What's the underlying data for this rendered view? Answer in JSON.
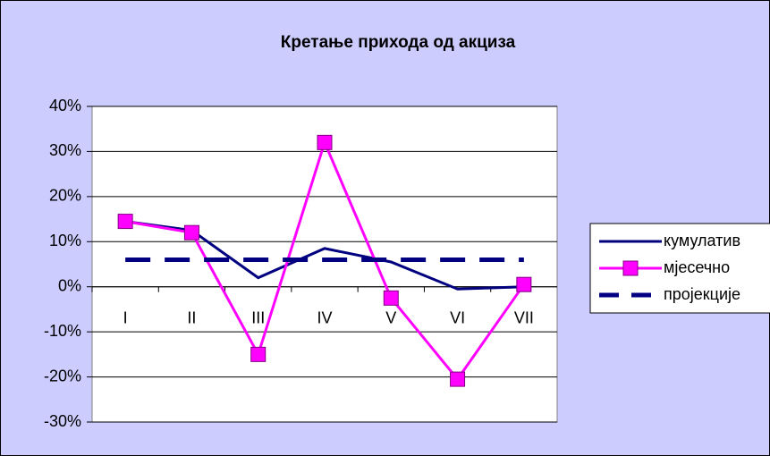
{
  "chart_data": {
    "type": "line",
    "title": "Кретање прихода од акциза",
    "categories": [
      "I",
      "II",
      "III",
      "IV",
      "V",
      "VI",
      "VII"
    ],
    "series": [
      {
        "name": "кумулатив",
        "color": "#000080",
        "style": "solid",
        "marker": false,
        "values": [
          14.5,
          12.5,
          2,
          8.5,
          5.5,
          -0.5,
          0
        ]
      },
      {
        "name": "мјесечно",
        "color": "#ff00ff",
        "style": "solid",
        "marker": true,
        "values": [
          14.5,
          12,
          -15,
          32,
          -2.5,
          -20.5,
          0.5
        ]
      },
      {
        "name": "пројекције",
        "color": "#000080",
        "style": "dashed",
        "marker": false,
        "values": [
          6,
          6,
          6,
          6,
          6,
          6,
          6
        ]
      }
    ],
    "ylim": [
      -30,
      40
    ],
    "yticks": [
      {
        "value": -30,
        "label": "-30%"
      },
      {
        "value": -20,
        "label": "-20%"
      },
      {
        "value": -10,
        "label": "-10%"
      },
      {
        "value": 0,
        "label": "0%"
      },
      {
        "value": 10,
        "label": "10%"
      },
      {
        "value": 20,
        "label": "20%"
      },
      {
        "value": 30,
        "label": "30%"
      },
      {
        "value": 40,
        "label": "40%"
      }
    ],
    "grid": true,
    "legend": "right"
  }
}
